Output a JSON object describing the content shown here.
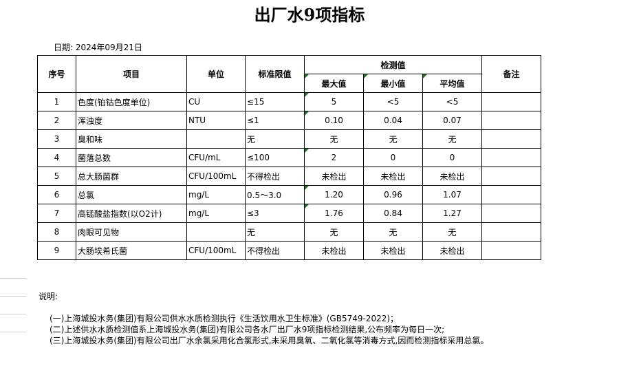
{
  "title": "出厂水9项指标",
  "date_label": "日期: 2024年09月21日",
  "headers": {
    "no": "序号",
    "item": "项目",
    "unit": "单位",
    "limit": "标准限值",
    "measured": "检测值",
    "max": "最大值",
    "min": "最小值",
    "avg": "平均值",
    "remark": "备注"
  },
  "rows": [
    {
      "no": "1",
      "item": "色度(铂钴色度单位)",
      "unit": "CU",
      "limit": "≤15",
      "max": "5",
      "min": "<5",
      "avg": "<5",
      "flag": true
    },
    {
      "no": "2",
      "item": "浑浊度",
      "unit": "NTU",
      "limit": "≤1",
      "max": "0.10",
      "min": "0.04",
      "avg": "0.07",
      "flag": true
    },
    {
      "no": "3",
      "item": "臭和味",
      "unit": "",
      "limit": "无",
      "max": "无",
      "min": "无",
      "avg": "无",
      "flag": false
    },
    {
      "no": "4",
      "item": "菌落总数",
      "unit": "CFU/mL",
      "limit": "≤100",
      "max": "2",
      "min": "0",
      "avg": "0",
      "flag": true
    },
    {
      "no": "5",
      "item": "总大肠菌群",
      "unit": "CFU/100mL",
      "limit": "不得检出",
      "max": "未检出",
      "min": "未检出",
      "avg": "未检出",
      "flag": false
    },
    {
      "no": "6",
      "item": "总氯",
      "unit": "mg/L",
      "limit": "0.5～3.0",
      "max": "1.20",
      "min": "0.96",
      "avg": "1.07",
      "flag": true
    },
    {
      "no": "7",
      "item": "高锰酸盐指数(以O2计)",
      "unit": "mg/L",
      "limit": "≤3",
      "max": "1.76",
      "min": "0.84",
      "avg": "1.27",
      "flag": true
    },
    {
      "no": "8",
      "item": "肉眼可见物",
      "unit": "",
      "limit": "无",
      "max": "无",
      "min": "无",
      "avg": "无",
      "flag": false
    },
    {
      "no": "9",
      "item": "大肠埃希氏菌",
      "unit": "CFU/100mL",
      "limit": "不得检出",
      "max": "未检出",
      "min": "未检出",
      "avg": "未检出",
      "flag": false
    }
  ],
  "notes": {
    "label": "说明:",
    "items": [
      "(一)上海城投水务(集团)有限公司供水水质检测执行《生活饮用水卫生标准》(GB5749-2022)；",
      "(二)上述供水水质检测值系上海城投水务(集团)有限公司各水厂出厂水9项指标检测结果,公布频率为每日一次;",
      "(三)上海城投水务(集团)有限公司出厂水余氯采用化合氯形式,未采用臭氧、二氧化氯等消毒方式,因而检测指标采用总氯。"
    ]
  },
  "colors": {
    "cell_marker": "#1a7a1a"
  }
}
